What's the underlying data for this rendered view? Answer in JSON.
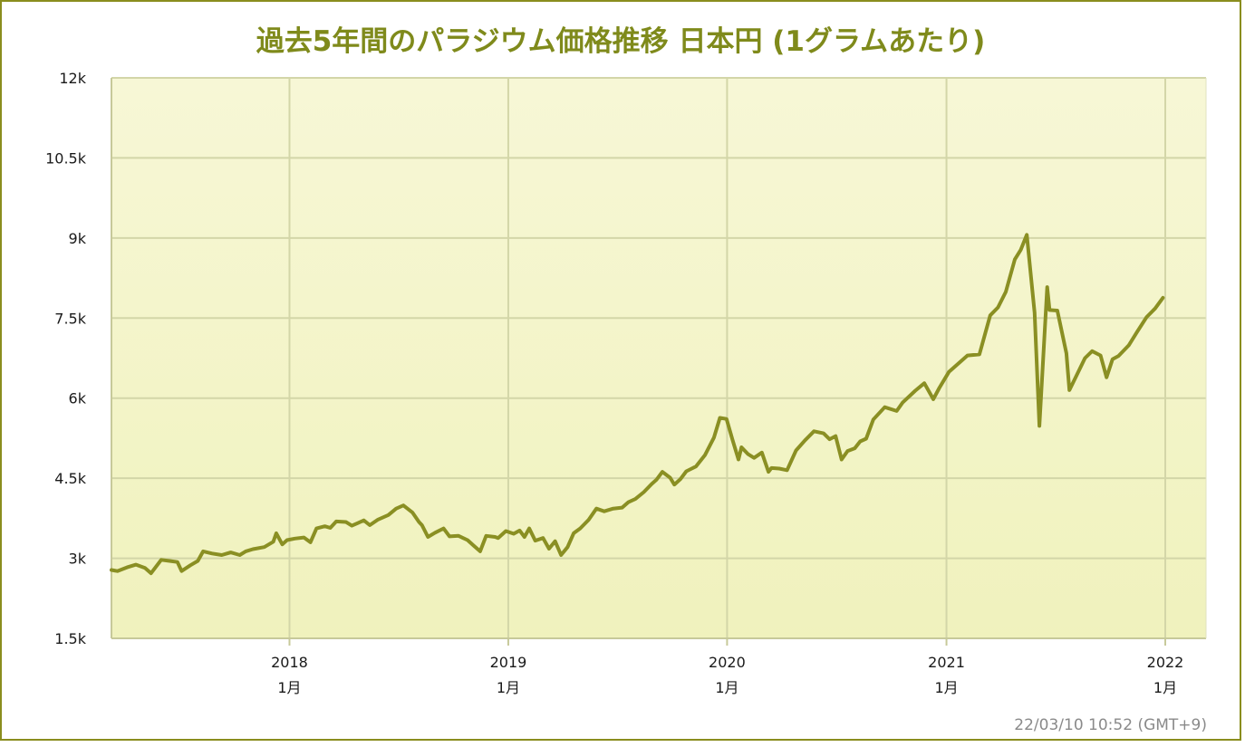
{
  "chart_data": {
    "type": "line",
    "title": "過去5年間のパラジウム価格推移 日本円 (1グラムあたり)",
    "xlabel": "",
    "ylabel": "",
    "ylim": [
      1500,
      12000
    ],
    "y_ticks": [
      {
        "value": 1500,
        "label": "1.5k"
      },
      {
        "value": 3000,
        "label": "3k"
      },
      {
        "value": 4500,
        "label": "4.5k"
      },
      {
        "value": 6000,
        "label": "6k"
      },
      {
        "value": 7500,
        "label": "7.5k"
      },
      {
        "value": 9000,
        "label": "9k"
      },
      {
        "value": 10500,
        "label": "10.5k"
      },
      {
        "value": 12000,
        "label": "12k"
      }
    ],
    "xlim": [
      "2017-03-10",
      "2022-03-10"
    ],
    "x_ticks": [
      {
        "date": "2018-01-01",
        "year": "2018",
        "month": "1月"
      },
      {
        "date": "2019-01-01",
        "year": "2019",
        "month": "1月"
      },
      {
        "date": "2020-01-01",
        "year": "2020",
        "month": "1月"
      },
      {
        "date": "2021-01-01",
        "year": "2021",
        "month": "1月"
      },
      {
        "date": "2022-01-01",
        "year": "2022",
        "month": "1月"
      }
    ],
    "grid": true,
    "line_color": "#8a8f23",
    "series": [
      {
        "points": [
          [
            "2017-03-10",
            2780
          ],
          [
            "2017-03-20",
            2760
          ],
          [
            "2017-04-05",
            2830
          ],
          [
            "2017-04-20",
            2880
          ],
          [
            "2017-05-05",
            2820
          ],
          [
            "2017-05-15",
            2720
          ],
          [
            "2017-06-01",
            2970
          ],
          [
            "2017-06-15",
            2950
          ],
          [
            "2017-06-28",
            2930
          ],
          [
            "2017-07-05",
            2760
          ],
          [
            "2017-07-20",
            2870
          ],
          [
            "2017-08-01",
            2950
          ],
          [
            "2017-08-10",
            3130
          ],
          [
            "2017-08-25",
            3090
          ],
          [
            "2017-09-10",
            3060
          ],
          [
            "2017-09-25",
            3110
          ],
          [
            "2017-10-10",
            3060
          ],
          [
            "2017-10-20",
            3130
          ],
          [
            "2017-11-01",
            3170
          ],
          [
            "2017-11-20",
            3210
          ],
          [
            "2017-12-05",
            3310
          ],
          [
            "2017-12-10",
            3470
          ],
          [
            "2017-12-20",
            3260
          ],
          [
            "2017-12-28",
            3340
          ],
          [
            "2018-01-10",
            3370
          ],
          [
            "2018-01-25",
            3390
          ],
          [
            "2018-02-05",
            3300
          ],
          [
            "2018-02-15",
            3560
          ],
          [
            "2018-03-01",
            3600
          ],
          [
            "2018-03-10",
            3570
          ],
          [
            "2018-03-20",
            3690
          ],
          [
            "2018-04-05",
            3680
          ],
          [
            "2018-04-15",
            3610
          ],
          [
            "2018-04-25",
            3660
          ],
          [
            "2018-05-05",
            3710
          ],
          [
            "2018-05-15",
            3620
          ],
          [
            "2018-05-28",
            3720
          ],
          [
            "2018-06-15",
            3810
          ],
          [
            "2018-06-28",
            3930
          ],
          [
            "2018-07-10",
            3990
          ],
          [
            "2018-07-25",
            3860
          ],
          [
            "2018-08-05",
            3680
          ],
          [
            "2018-08-10",
            3620
          ],
          [
            "2018-08-20",
            3400
          ],
          [
            "2018-09-01",
            3480
          ],
          [
            "2018-09-15",
            3560
          ],
          [
            "2018-09-25",
            3410
          ],
          [
            "2018-10-10",
            3420
          ],
          [
            "2018-10-25",
            3340
          ],
          [
            "2018-11-05",
            3230
          ],
          [
            "2018-11-15",
            3130
          ],
          [
            "2018-11-25",
            3420
          ],
          [
            "2018-12-10",
            3400
          ],
          [
            "2018-12-15",
            3380
          ],
          [
            "2018-12-28",
            3510
          ],
          [
            "2019-01-10",
            3460
          ],
          [
            "2019-01-20",
            3520
          ],
          [
            "2019-01-28",
            3400
          ],
          [
            "2019-02-05",
            3560
          ],
          [
            "2019-02-15",
            3330
          ],
          [
            "2019-02-28",
            3380
          ],
          [
            "2019-03-10",
            3180
          ],
          [
            "2019-03-20",
            3320
          ],
          [
            "2019-03-30",
            3060
          ],
          [
            "2019-04-10",
            3210
          ],
          [
            "2019-04-20",
            3470
          ],
          [
            "2019-05-01",
            3560
          ],
          [
            "2019-05-15",
            3720
          ],
          [
            "2019-05-28",
            3930
          ],
          [
            "2019-06-10",
            3880
          ],
          [
            "2019-06-25",
            3930
          ],
          [
            "2019-07-10",
            3950
          ],
          [
            "2019-07-20",
            4050
          ],
          [
            "2019-08-01",
            4110
          ],
          [
            "2019-08-15",
            4240
          ],
          [
            "2019-08-28",
            4390
          ],
          [
            "2019-09-05",
            4470
          ],
          [
            "2019-09-15",
            4620
          ],
          [
            "2019-09-28",
            4510
          ],
          [
            "2019-10-05",
            4380
          ],
          [
            "2019-10-15",
            4480
          ],
          [
            "2019-10-25",
            4630
          ],
          [
            "2019-11-10",
            4720
          ],
          [
            "2019-11-25",
            4930
          ],
          [
            "2019-12-10",
            5260
          ],
          [
            "2019-12-20",
            5630
          ],
          [
            "2019-12-31",
            5610
          ],
          [
            "2020-01-10",
            5220
          ],
          [
            "2020-01-20",
            4850
          ],
          [
            "2020-01-25",
            5080
          ],
          [
            "2020-02-05",
            4950
          ],
          [
            "2020-02-15",
            4880
          ],
          [
            "2020-02-28",
            4980
          ],
          [
            "2020-03-10",
            4620
          ],
          [
            "2020-03-15",
            4690
          ],
          [
            "2020-03-28",
            4680
          ],
          [
            "2020-04-10",
            4650
          ],
          [
            "2020-04-25",
            5020
          ],
          [
            "2020-05-10",
            5210
          ],
          [
            "2020-05-25",
            5380
          ],
          [
            "2020-06-10",
            5340
          ],
          [
            "2020-06-20",
            5230
          ],
          [
            "2020-06-30",
            5290
          ],
          [
            "2020-07-10",
            4850
          ],
          [
            "2020-07-20",
            5010
          ],
          [
            "2020-08-01",
            5060
          ],
          [
            "2020-08-10",
            5190
          ],
          [
            "2020-08-20",
            5240
          ],
          [
            "2020-09-01",
            5600
          ],
          [
            "2020-09-20",
            5830
          ],
          [
            "2020-10-10",
            5760
          ],
          [
            "2020-10-20",
            5920
          ],
          [
            "2020-11-10",
            6140
          ],
          [
            "2020-11-25",
            6280
          ],
          [
            "2020-12-10",
            5980
          ],
          [
            "2020-12-20",
            6190
          ],
          [
            "2021-01-05",
            6490
          ],
          [
            "2021-01-20",
            6640
          ],
          [
            "2021-02-05",
            6800
          ],
          [
            "2021-02-25",
            6820
          ],
          [
            "2021-03-15",
            7550
          ],
          [
            "2021-03-28",
            7700
          ],
          [
            "2021-04-10",
            7990
          ],
          [
            "2021-04-25",
            8600
          ],
          [
            "2021-05-05",
            8780
          ],
          [
            "2021-05-15",
            9060
          ],
          [
            "2021-05-28",
            7600
          ],
          [
            "2021-06-05",
            5480
          ],
          [
            "2021-06-18",
            8080
          ],
          [
            "2021-06-22",
            7650
          ],
          [
            "2021-07-05",
            7640
          ],
          [
            "2021-07-20",
            6840
          ],
          [
            "2021-07-25",
            6150
          ],
          [
            "2021-08-05",
            6400
          ],
          [
            "2021-08-20",
            6750
          ],
          [
            "2021-09-01",
            6880
          ],
          [
            "2021-09-15",
            6800
          ],
          [
            "2021-09-25",
            6390
          ],
          [
            "2021-10-05",
            6730
          ],
          [
            "2021-10-15",
            6790
          ],
          [
            "2021-11-01",
            6990
          ],
          [
            "2021-11-15",
            7240
          ],
          [
            "2021-12-01",
            7520
          ],
          [
            "2021-12-15",
            7680
          ],
          [
            "2021-12-28",
            7880
          ]
        ]
      }
    ]
  },
  "timestamp": "22/03/10 10:52 (GMT+9)"
}
